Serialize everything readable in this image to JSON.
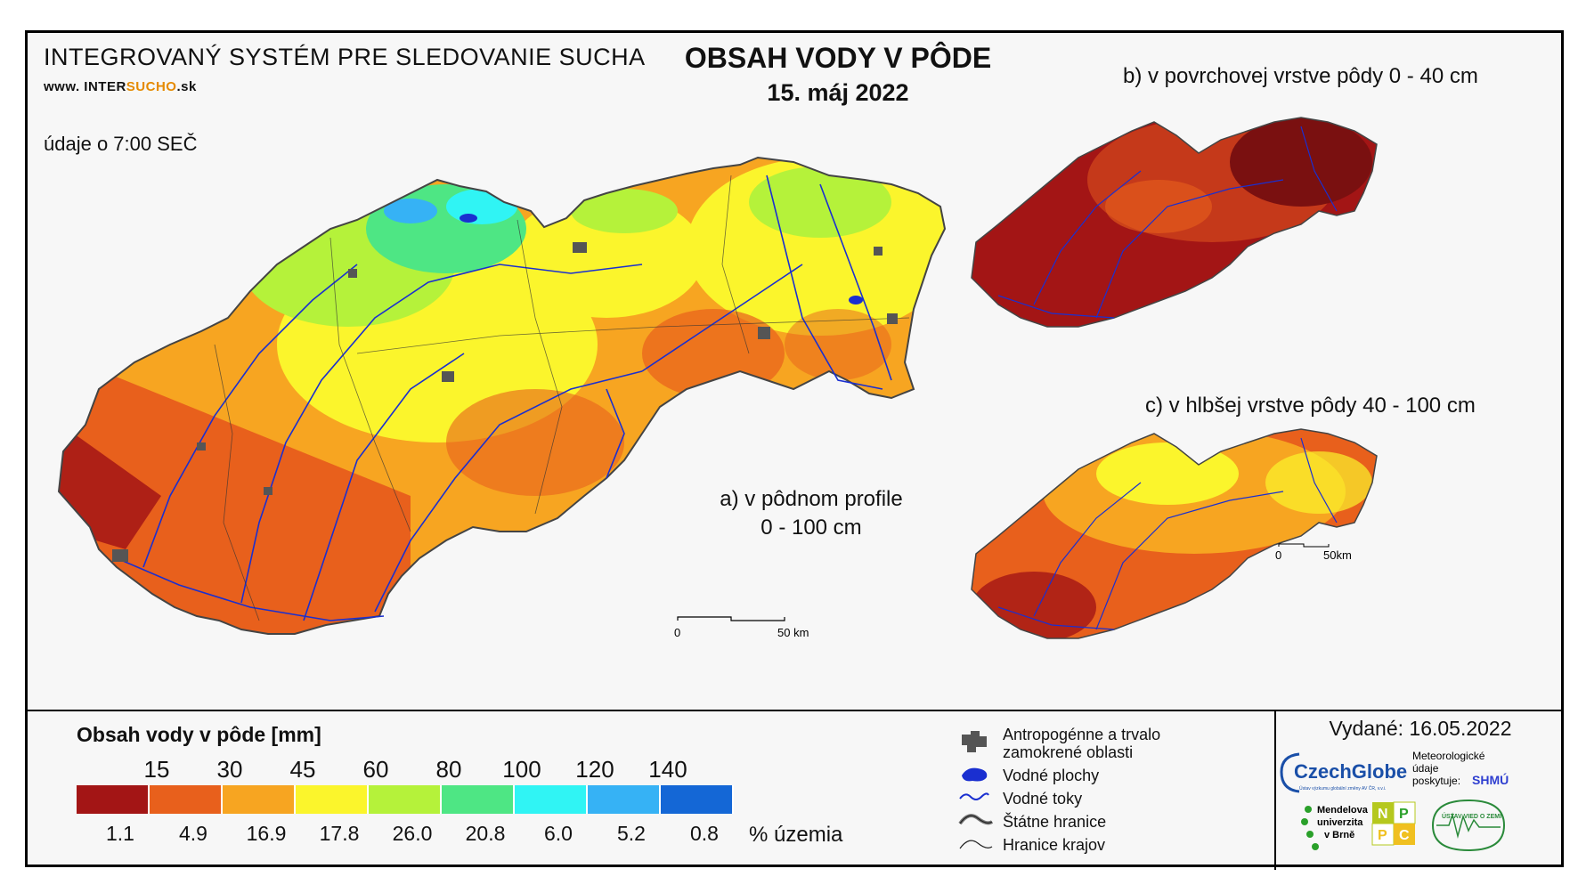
{
  "header": {
    "system_title": "INTEGROVANÝ SYSTÉM PRE SLEDOVANIE SUCHA",
    "website_prefix": "www. INTER",
    "website_highlight": "SUCHO",
    "website_suffix": ".sk",
    "time_note": "údaje o 7:00 SEČ",
    "main_title": "OBSAH VODY V PÔDE",
    "date": "15. máj 2022"
  },
  "maps": {
    "a_line1": "a) v pôdnom profile",
    "a_line2": "0 - 100 cm",
    "b_label": "b) v povrchovej vrstve pôdy 0 - 40 cm",
    "c_label": "c) v hlbšej vrstve pôdy 40 - 100 cm",
    "scale_main_zero": "0",
    "scale_main_end": "50 km",
    "scale_small_zero": "0",
    "scale_small_end": "50km"
  },
  "legend": {
    "title": "Obsah vody v pôde  [mm]",
    "unit_label": "% územia",
    "thresholds": [
      "15",
      "30",
      "45",
      "60",
      "80",
      "100",
      "120",
      "140"
    ],
    "percentages": [
      "1.1",
      "4.9",
      "16.9",
      "17.8",
      "26.0",
      "20.8",
      "6.0",
      "5.2",
      "0.8"
    ],
    "colors": [
      "#a31515",
      "#e8601c",
      "#f7a521",
      "#fbf52c",
      "#b5f23a",
      "#4ee684",
      "#30f4f4",
      "#36b2f5",
      "#1467d6"
    ]
  },
  "key": {
    "anthropogenic_line1": "Antropogénne a trvalo",
    "anthropogenic_line2": "zamokrené oblasti",
    "water_bodies": "Vodné plochy",
    "water_streams": "Vodné toky",
    "state_border": "Štátne hranice",
    "region_border": "Hranice krajov"
  },
  "footer": {
    "issued": "Vydané: 16.05.2022",
    "czechglobe": "CzechGlobe",
    "czechglobe_sub": "Ústav výzkumu globální změny AV ČR, v.v.i.",
    "meteo_line1": "Meteorologické",
    "meteo_line2": "údaje",
    "meteo_line3": "poskytuje:",
    "shmu": "SHMÚ",
    "mendel_line1": "Mendelova",
    "mendel_line2": "univerzita",
    "mendel_line3": "v Brně",
    "nppc": [
      "N",
      "P",
      "P",
      "C"
    ],
    "ustav": "ÚSTAV VIED O ZEMI"
  }
}
